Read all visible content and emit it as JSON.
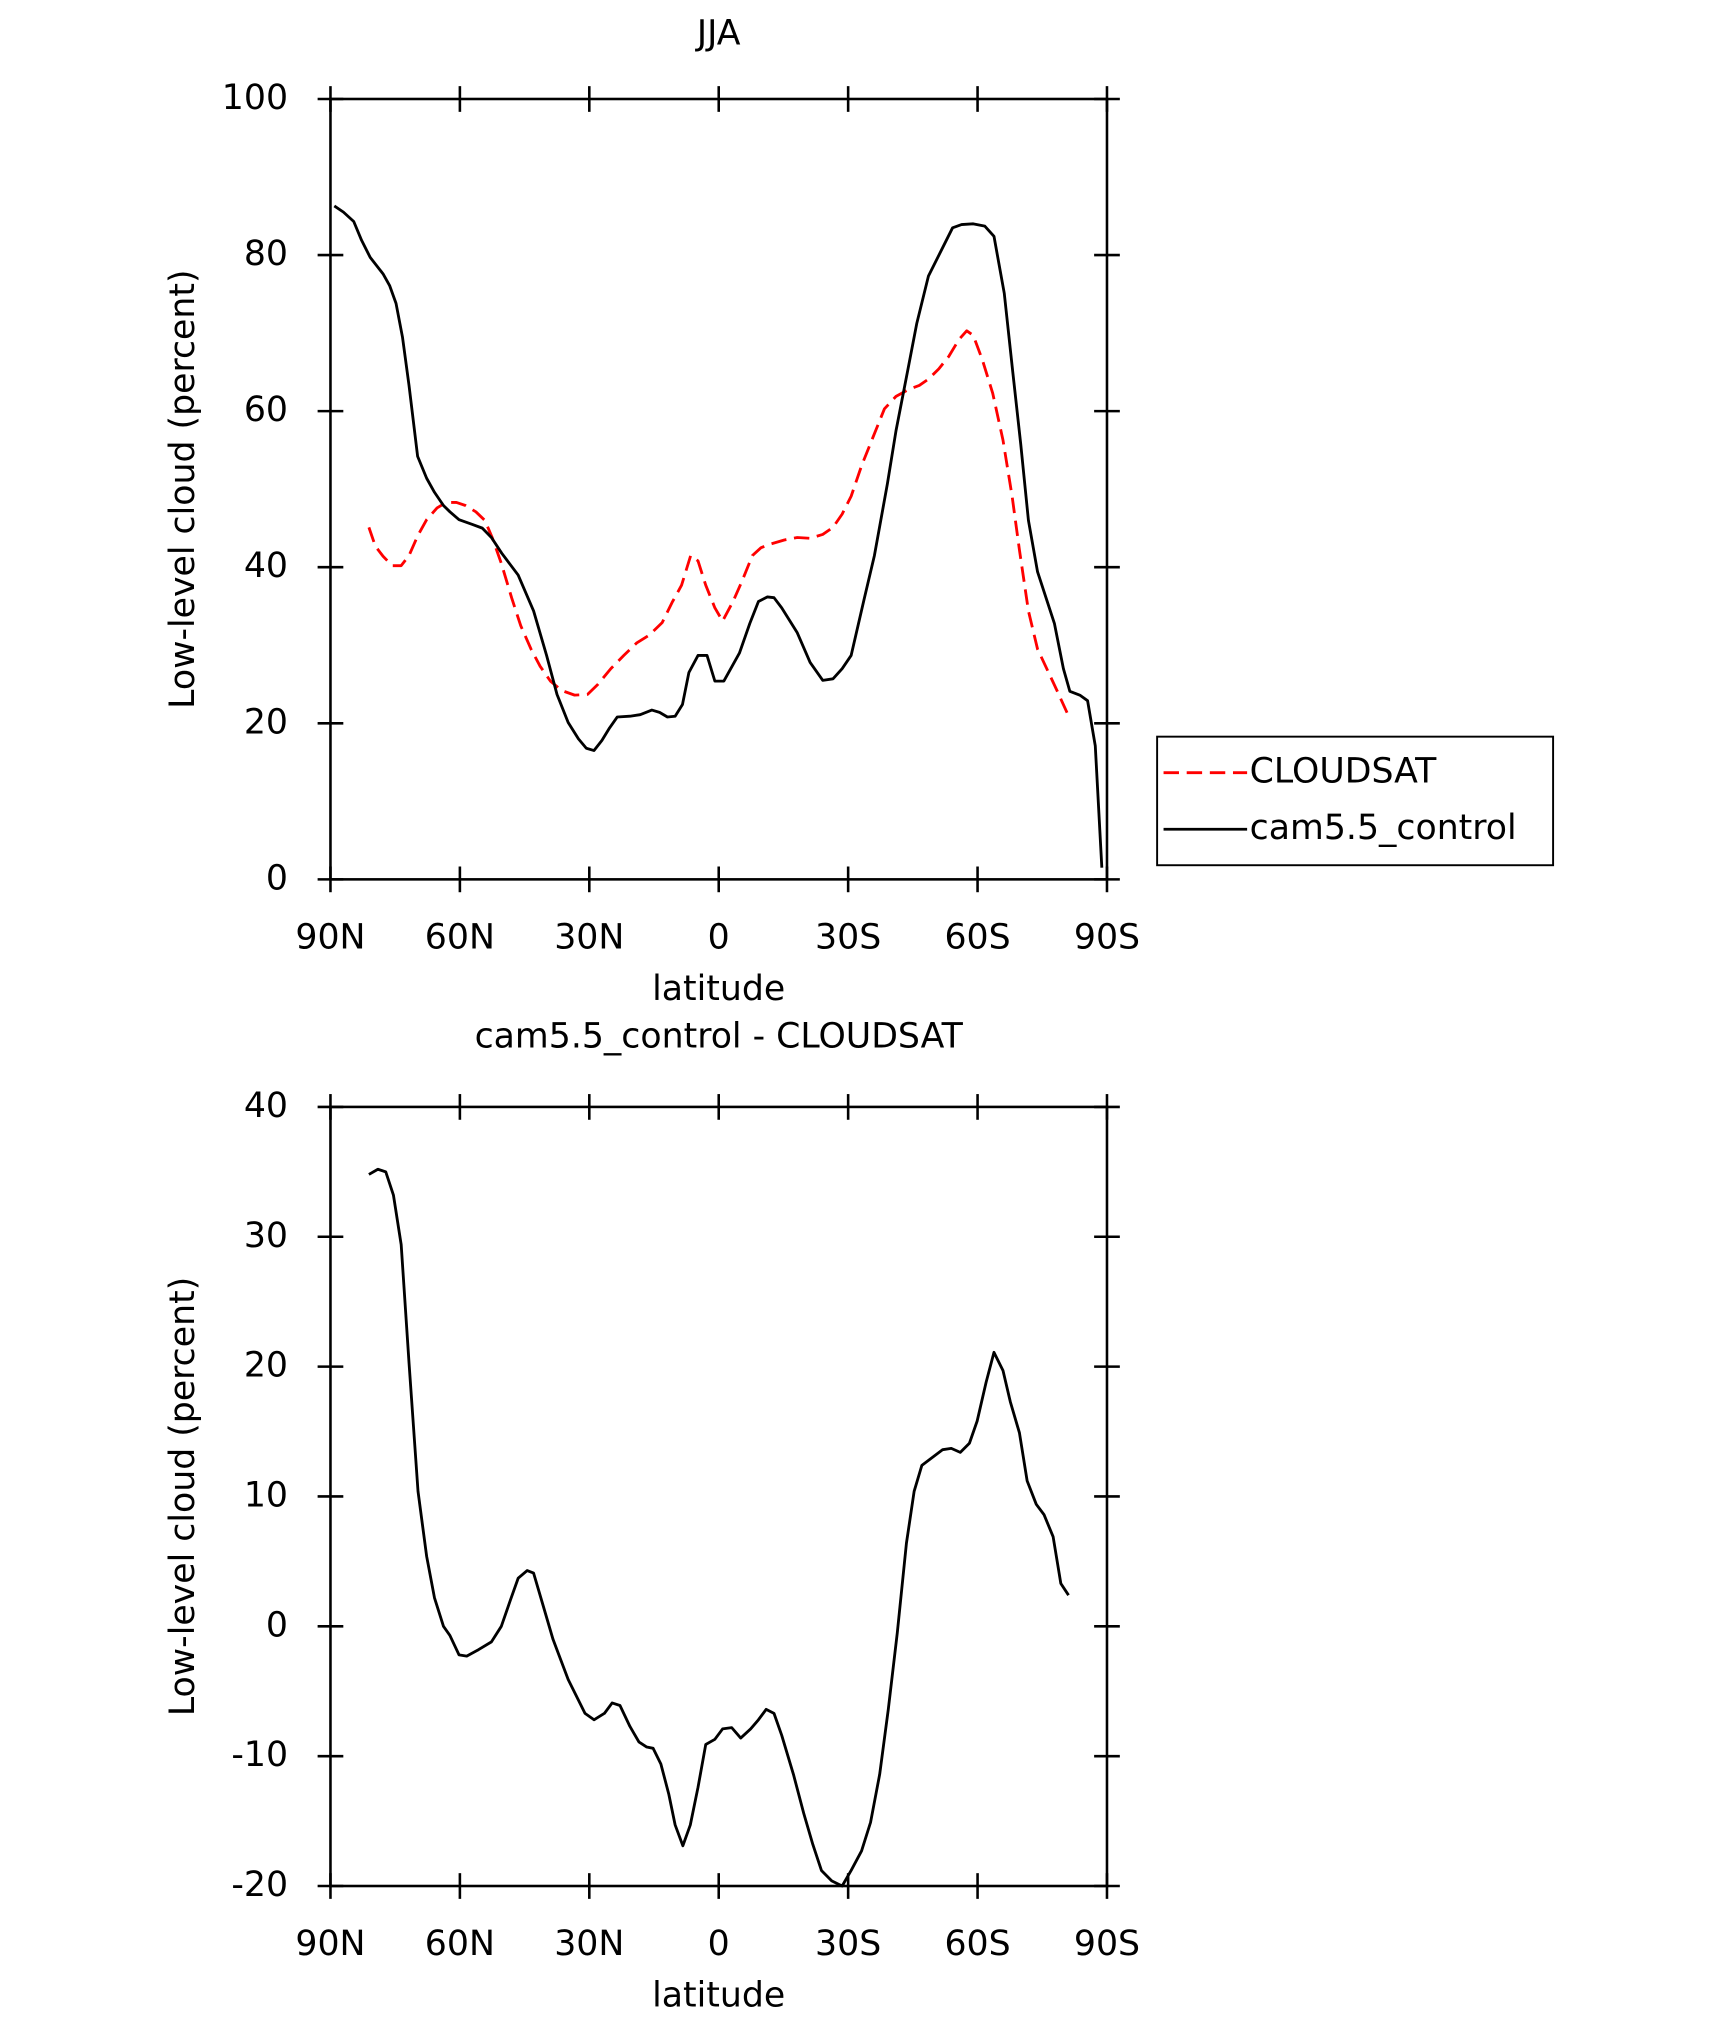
{
  "chart_data": [
    {
      "type": "line",
      "title": "JJA",
      "x_label": "latitude",
      "y_label": "Low-level cloud (percent)",
      "xlim": [
        90,
        -90
      ],
      "ylim": [
        0,
        100
      ],
      "xticks": [
        {
          "value": 90,
          "label": "90N"
        },
        {
          "value": 60,
          "label": "60N"
        },
        {
          "value": 30,
          "label": "30N"
        },
        0,
        {
          "value": -30,
          "label": "30S"
        },
        {
          "value": -60,
          "label": "60S"
        },
        {
          "value": -90,
          "label": "90S"
        }
      ],
      "yticks": [
        0,
        20,
        40,
        60,
        80,
        100
      ],
      "legend": "right",
      "series": [
        {
          "name": "CLOUDSAT",
          "color": "#ff0000",
          "dash": true,
          "x": [
            81.1,
            79.6,
            77.8,
            75.7,
            73.6,
            71.8,
            69.8,
            67.7,
            65.3,
            63.2,
            60.8,
            58.7,
            56.3,
            54.2,
            52.5,
            50.4,
            48.0,
            45.9,
            43.5,
            41.4,
            39.0,
            36.4,
            33.4,
            30.4,
            28.0,
            25.0,
            22.0,
            19.0,
            16.1,
            13.1,
            10.7,
            8.6,
            6.5,
            4.8,
            3.0,
            0.9,
            -0.9,
            -3.3,
            -5.4,
            -7.8,
            -9.8,
            -12.2,
            -15.2,
            -18.2,
            -21.2,
            -24.1,
            -26.5,
            -28.6,
            -30.7,
            -33.1,
            -35.5,
            -38.4,
            -41.1,
            -44.1,
            -46.5,
            -48.6,
            -51.0,
            -53.3,
            -55.7,
            -57.5,
            -59.0,
            -61.1,
            -63.5,
            -65.9,
            -68.0,
            -69.7,
            -71.8,
            -73.9,
            -76.3,
            -78.4,
            -80.8
          ],
          "values": [
            45.1,
            42.7,
            41.4,
            40.2,
            40.2,
            41.5,
            44,
            46.1,
            47.6,
            48.3,
            48.3,
            47.9,
            47.1,
            46,
            43.8,
            40.5,
            36.1,
            32.5,
            29.5,
            27.3,
            25.4,
            24.2,
            23.6,
            23.7,
            25,
            27,
            28.7,
            30.3,
            31.3,
            32.9,
            35.6,
            37.7,
            41.5,
            40.8,
            37.7,
            34.8,
            33.1,
            35.6,
            38.2,
            41.5,
            42.5,
            43,
            43.5,
            43.8,
            43.7,
            44.2,
            45.1,
            46.8,
            49.1,
            53,
            56.3,
            60.3,
            61.9,
            62.8,
            63.3,
            64.1,
            65.4,
            67,
            69.2,
            70.3,
            69.7,
            66.6,
            62.3,
            56.3,
            49.1,
            42.2,
            34.4,
            29.5,
            26.7,
            24.2,
            21.3
          ]
        },
        {
          "name": "cam5.5_control",
          "color": "#000000",
          "dash": false,
          "x": [
            89.1,
            87.0,
            84.6,
            82.8,
            80.8,
            77.8,
            76.3,
            74.8,
            73.3,
            71.8,
            69.8,
            67.7,
            65.9,
            63.8,
            62.3,
            60.2,
            57.2,
            54.8,
            52.7,
            50.3,
            46.5,
            42.9,
            39.9,
            37.5,
            34.9,
            32.5,
            30.7,
            28.9,
            27.1,
            25.3,
            23.5,
            20.6,
            18.2,
            15.5,
            13.7,
            11.9,
            10.1,
            8.4,
            6.9,
            4.8,
            2.7,
            0.9,
            -1.2,
            -4.8,
            -7.2,
            -9.2,
            -11.3,
            -12.8,
            -14.6,
            -18.2,
            -21.2,
            -24.1,
            -26.5,
            -28.6,
            -30.7,
            -33.7,
            -36.1,
            -39.1,
            -41.1,
            -43.8,
            -45.9,
            -48.6,
            -51.6,
            -54.2,
            -56.3,
            -59.0,
            -61.7,
            -63.8,
            -66.2,
            -68.2,
            -70.0,
            -71.8,
            -73.9,
            -77.8,
            -79.9,
            -81.4,
            -83.7,
            -85.5,
            -87.3,
            -88.8
          ],
          "values": [
            86.3,
            85.5,
            84.3,
            81.9,
            79.7,
            77.6,
            76.1,
            73.8,
            69.5,
            63.3,
            54.2,
            51.4,
            49.6,
            47.9,
            47.1,
            46.1,
            45.5,
            45,
            43.8,
            41.8,
            39,
            34.4,
            28.7,
            23.7,
            20.1,
            18,
            16.8,
            16.5,
            17.8,
            19.4,
            20.8,
            20.9,
            21.1,
            21.7,
            21.4,
            20.8,
            20.9,
            22.4,
            26.5,
            28.7,
            28.7,
            25.4,
            25.4,
            29,
            32.8,
            35.6,
            36.2,
            36.1,
            34.8,
            31.6,
            27.8,
            25.5,
            25.7,
            27,
            28.7,
            35.9,
            41.5,
            50.7,
            57.5,
            65.2,
            71.2,
            77.3,
            80.6,
            83.5,
            83.9,
            84,
            83.7,
            82.4,
            75.1,
            64.9,
            55.8,
            46,
            39.4,
            32.8,
            27,
            24.1,
            23.6,
            22.9,
            17.1,
            1.5
          ]
        }
      ]
    },
    {
      "type": "line",
      "title": "cam5.5_control - CLOUDSAT",
      "x_label": "latitude",
      "y_label": "Low-level cloud (percent)",
      "xlim": [
        90,
        -90
      ],
      "ylim": [
        -20,
        40
      ],
      "xticks": [
        {
          "value": 90,
          "label": "90N"
        },
        {
          "value": 60,
          "label": "60N"
        },
        {
          "value": 30,
          "label": "30N"
        },
        0,
        {
          "value": -30,
          "label": "30S"
        },
        {
          "value": -60,
          "label": "60S"
        },
        {
          "value": -90,
          "label": "90S"
        }
      ],
      "yticks": [
        -20,
        -10,
        0,
        10,
        20,
        30,
        40
      ],
      "series": [
        {
          "color": "#000000",
          "dash": false,
          "x": [
            81.1,
            79.0,
            77.2,
            75.4,
            73.6,
            71.8,
            69.7,
            67.7,
            65.9,
            63.8,
            62.3,
            60.2,
            58.4,
            55.7,
            52.7,
            50.4,
            48.3,
            46.5,
            44.4,
            42.9,
            40.8,
            38.4,
            34.9,
            31.0,
            28.9,
            26.5,
            24.7,
            22.9,
            20.6,
            18.5,
            16.7,
            15.2,
            13.4,
            11.6,
            10.1,
            8.3,
            6.6,
            4.8,
            3.0,
            0.9,
            -0.9,
            -3.0,
            -5.1,
            -7.4,
            -9.2,
            -11.0,
            -12.8,
            -14.6,
            -17.3,
            -19.7,
            -21.8,
            -23.8,
            -26.2,
            -28.6,
            -30.7,
            -33.1,
            -35.2,
            -37.3,
            -39.3,
            -41.4,
            -43.5,
            -45.3,
            -47.1,
            -49.5,
            -51.9,
            -53.9,
            -56.0,
            -58.1,
            -59.9,
            -62.0,
            -63.8,
            -65.9,
            -67.6,
            -69.7,
            -71.5,
            -73.6,
            -75.4,
            -77.5,
            -79.3,
            -81.1
          ],
          "values": [
            34.8,
            35.2,
            35,
            33.2,
            29.4,
            20.3,
            10.4,
            5.4,
            2.2,
            0,
            -0.7,
            -2.2,
            -2.3,
            -1.8,
            -1.2,
            0,
            2,
            3.7,
            4.3,
            4.1,
            1.7,
            -1,
            -4.1,
            -6.7,
            -7.2,
            -6.7,
            -5.9,
            -6.1,
            -7.7,
            -8.9,
            -9.3,
            -9.4,
            -10.6,
            -12.9,
            -15.3,
            -16.9,
            -15.3,
            -12.4,
            -9.1,
            -8.7,
            -7.9,
            -7.8,
            -8.6,
            -7.9,
            -7.2,
            -6.4,
            -6.7,
            -8.4,
            -11.4,
            -14.4,
            -16.8,
            -18.8,
            -19.6,
            -20,
            -18.8,
            -17.3,
            -15.1,
            -11.4,
            -6.4,
            -0.5,
            6.4,
            10.4,
            12.4,
            13,
            13.6,
            13.7,
            13.4,
            14.1,
            15.8,
            18.8,
            21.1,
            19.7,
            17.3,
            14.9,
            11.2,
            9.4,
            8.6,
            6.9,
            3.3,
            2.4
          ]
        }
      ]
    }
  ]
}
